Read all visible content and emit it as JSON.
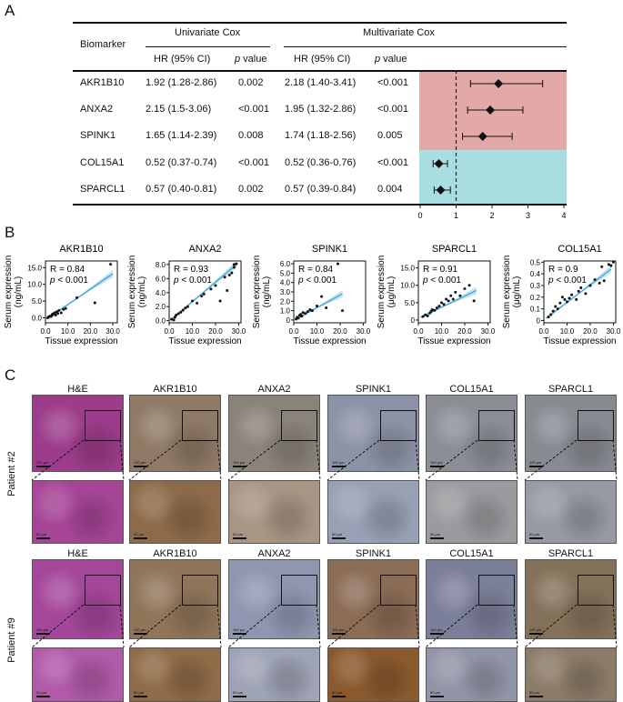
{
  "panels": {
    "a": "A",
    "b": "B",
    "c": "C"
  },
  "table": {
    "col_biomarker": "Biomarker",
    "col_univariate": "Univariate Cox",
    "col_multivariate": "Multivariate Cox",
    "sub_hr": "HR (95% CI)",
    "sub_p_italic": "p",
    "sub_p_rest": " value",
    "rows": [
      {
        "name": "AKR1B10",
        "uni_hr": "1.92 (1.28-2.86)",
        "uni_p": "0.002",
        "multi_hr": "2.18 (1.40-3.41)",
        "multi_p": "<0.001",
        "group": "risk",
        "hr": 2.18,
        "lo": 1.4,
        "hi": 3.41
      },
      {
        "name": "ANXA2",
        "uni_hr": "2.15 (1.5-3.06)",
        "uni_p": "<0.001",
        "multi_hr": "1.95 (1.32-2.86)",
        "multi_p": "<0.001",
        "group": "risk",
        "hr": 1.95,
        "lo": 1.32,
        "hi": 2.86
      },
      {
        "name": "SPINK1",
        "uni_hr": "1.65 (1.14-2.39)",
        "uni_p": "0.008",
        "multi_hr": "1.74 (1.18-2.56)",
        "multi_p": "0.005",
        "group": "risk",
        "hr": 1.74,
        "lo": 1.18,
        "hi": 2.56
      },
      {
        "name": "COL15A1",
        "uni_hr": "0.52 (0.37-0.74)",
        "uni_p": "<0.001",
        "multi_hr": "0.52 (0.36-0.76)",
        "multi_p": "<0.001",
        "group": "protective",
        "hr": 0.52,
        "lo": 0.36,
        "hi": 0.76
      },
      {
        "name": "SPARCL1",
        "uni_hr": "0.57 (0.40-0.81)",
        "uni_p": "0.002",
        "multi_hr": "0.57 (0.39-0.84)",
        "multi_p": "0.004",
        "group": "protective",
        "hr": 0.57,
        "lo": 0.39,
        "hi": 0.84
      }
    ]
  },
  "chart_data": [
    {
      "type": "forest",
      "title": "",
      "xlim": [
        0,
        4
      ],
      "xticks": [
        "0",
        "1",
        "2",
        "3",
        "4"
      ],
      "reference_line": 1,
      "colors": {
        "risk": "#e3a8a8",
        "protective": "#a8dde2",
        "marker": "#111111"
      },
      "categories": [
        "AKR1B10",
        "ANXA2",
        "SPINK1",
        "COL15A1",
        "SPARCL1"
      ],
      "hr": [
        2.18,
        1.95,
        1.74,
        0.52,
        0.57
      ],
      "lower": [
        1.4,
        1.32,
        1.18,
        0.36,
        0.39
      ],
      "upper": [
        3.41,
        2.86,
        2.56,
        0.76,
        0.84
      ]
    },
    {
      "type": "scatter",
      "title": "AKR1B10",
      "xlabel": "Tissue expression",
      "ylabel_top": "Serum expression",
      "ylabel_bottom": "(ng/mL)",
      "xlim": [
        0,
        32
      ],
      "ylim": [
        -1.5,
        17
      ],
      "xticks": [
        0,
        10,
        20,
        30
      ],
      "yticks": [
        0,
        5,
        10,
        15
      ],
      "xtick_labels": [
        "0.0",
        "10.0",
        "20.0",
        "30.0"
      ],
      "ytick_labels": [
        "0.0",
        "5.0",
        "10.0",
        "15.0"
      ],
      "r_text": "R = 0.84",
      "p_text": "< 0.001",
      "fit": [
        [
          1,
          -0.2
        ],
        [
          30,
          13.2
        ]
      ],
      "x": [
        1,
        1.5,
        2,
        2.5,
        3,
        3,
        3.5,
        4,
        4.5,
        5,
        5.5,
        6,
        7,
        8,
        9,
        14,
        22,
        29
      ],
      "y": [
        0,
        0.3,
        0.5,
        0.4,
        1,
        0.8,
        1.2,
        1.5,
        0.8,
        1.8,
        1.3,
        2.2,
        1.5,
        2.5,
        2.8,
        6,
        4.5,
        16
      ]
    },
    {
      "type": "scatter",
      "title": "ANXA2",
      "xlabel": "Tissue expression",
      "ylabel_top": "Serum expression",
      "ylabel_bottom": "(ng/mL)",
      "xlim": [
        0,
        31
      ],
      "ylim": [
        -0.3,
        8.5
      ],
      "xticks": [
        0,
        10,
        20,
        30
      ],
      "yticks": [
        0,
        2,
        4,
        6,
        8
      ],
      "xtick_labels": [
        "0.0",
        "10.0",
        "20.0",
        "30.0"
      ],
      "ytick_labels": [
        "0.0",
        "2.0",
        "4.0",
        "6.0",
        "8.0"
      ],
      "r_text": "R = 0.93",
      "p_text": "< 0.001",
      "fit": [
        [
          1,
          0.2
        ],
        [
          29,
          8.0
        ]
      ],
      "x": [
        1,
        2,
        2.5,
        3,
        4,
        5,
        6,
        7,
        8,
        10,
        12,
        14,
        15,
        18,
        20,
        22,
        24,
        25,
        26,
        27,
        28,
        29,
        28
      ],
      "y": [
        0.2,
        0.1,
        0.5,
        0.8,
        1,
        1.2,
        1.5,
        1.8,
        2,
        2.8,
        2.5,
        3.5,
        3.8,
        4.5,
        5,
        2.8,
        6.2,
        4.3,
        6.5,
        6.8,
        8,
        8.1,
        7.6
      ]
    },
    {
      "type": "scatter",
      "title": "SPINK1",
      "xlabel": "Tissue expression",
      "ylabel_top": "Serum expression",
      "ylabel_bottom": "(ng/mL)",
      "xlim": [
        0,
        31
      ],
      "ylim": [
        -0.3,
        6.3
      ],
      "xticks": [
        0,
        10,
        20,
        30
      ],
      "yticks": [
        0,
        1,
        2,
        3,
        4,
        5,
        6
      ],
      "xtick_labels": [
        "0.0",
        "10.0",
        "20.0",
        "30.0"
      ],
      "ytick_labels": [
        "0",
        "1.0",
        "2.0",
        "3.0",
        "4.0",
        "5.0",
        "6.0"
      ],
      "r_text": "R = 0.84",
      "p_text": "< 0.001",
      "fit": [
        [
          1,
          0.1
        ],
        [
          21,
          2.8
        ]
      ],
      "x": [
        1,
        1.5,
        2,
        2.5,
        3,
        3.5,
        4,
        5,
        6,
        7,
        8,
        10,
        12,
        14,
        19,
        21
      ],
      "y": [
        0.1,
        0.3,
        0.2,
        0.5,
        0.6,
        0.4,
        0.8,
        0.7,
        0.9,
        1.1,
        1,
        1.5,
        2.5,
        1.3,
        6,
        1
      ]
    },
    {
      "type": "scatter",
      "title": "SPARCL1",
      "xlabel": "Tissue expression",
      "ylabel_top": "Serum expression",
      "ylabel_bottom": "(μg/mL)",
      "xlim": [
        0,
        31
      ],
      "ylim": [
        -0.8,
        17
      ],
      "xticks": [
        0,
        10,
        20,
        30
      ],
      "yticks": [
        0,
        5,
        10,
        15
      ],
      "xtick_labels": [
        "0.0",
        "10.0",
        "20.0",
        "30.0"
      ],
      "ytick_labels": [
        "0",
        "5.0",
        "10.0",
        "15.0"
      ],
      "r_text": "R = 0.91",
      "p_text": "< 0.001",
      "fit": [
        [
          1,
          0.8
        ],
        [
          25,
          8.5
        ]
      ],
      "x": [
        2,
        3,
        4,
        5,
        5.5,
        6,
        7,
        8,
        9,
        10,
        11,
        12,
        13,
        14,
        15,
        16,
        18,
        20,
        22,
        24
      ],
      "y": [
        1,
        1.5,
        1.2,
        2,
        2.5,
        3,
        2.8,
        3.5,
        4,
        5,
        4.5,
        6,
        5.5,
        7,
        6,
        8,
        7,
        9,
        10,
        5.5
      ]
    },
    {
      "type": "scatter",
      "title": "COL15A1",
      "xlabel": "Tissue expression",
      "ylabel_top": "Serum expression",
      "ylabel_bottom": "(μg/mL)",
      "xlim": [
        0,
        31
      ],
      "ylim": [
        -0.02,
        0.51
      ],
      "xticks": [
        0,
        10,
        20,
        30
      ],
      "yticks": [
        0,
        0.1,
        0.2,
        0.3,
        0.4,
        0.5
      ],
      "xtick_labels": [
        "0.0",
        "10.0",
        "20.0",
        "30.0"
      ],
      "ytick_labels": [
        "0",
        "0.1",
        "0.2",
        "0.3",
        "0.4",
        "0.5"
      ],
      "r_text": "R = 0.9",
      "p_text": "< 0.001",
      "fit": [
        [
          1,
          0.02
        ],
        [
          29,
          0.44
        ]
      ],
      "x": [
        2,
        3,
        4,
        5,
        6,
        7,
        8,
        9,
        10,
        11,
        12,
        14,
        15,
        16,
        18,
        20,
        22,
        24,
        25,
        26,
        28,
        29,
        30
      ],
      "y": [
        0.03,
        0.05,
        0.08,
        0.12,
        0.1,
        0.15,
        0.2,
        0.18,
        0.16,
        0.19,
        0.22,
        0.18,
        0.25,
        0.28,
        0.23,
        0.3,
        0.35,
        0.32,
        0.46,
        0.34,
        0.48,
        0.47,
        0.5
      ]
    }
  ],
  "figure_c": {
    "patients": [
      {
        "label": "Patient #2",
        "stains": [
          "H&E",
          "AKR1B10",
          "ANXA2",
          "SPINK1",
          "COL15A1",
          "SPARCL1"
        ]
      },
      {
        "label": "Patient #9",
        "stains": [
          "H&E",
          "AKR1B10",
          "ANXA2",
          "SPINK1",
          "COL15A1",
          "SPARCL1"
        ]
      }
    ],
    "scale_low": "100 μm",
    "scale_high": "50 μm",
    "tile_colors": {
      "p2": {
        "he": "#9c3c8a",
        "akr": "#8f7a66",
        "anxa": "#8a8379",
        "spink": "#8d93a6",
        "col": "#8c8e96",
        "sparc": "#888a92"
      },
      "p2z": {
        "he": "#a64596",
        "akr": "#8d6b4a",
        "anxa": "#a89584",
        "spink": "#98a0b5",
        "col": "#9b9b9f",
        "sparc": "#979aa3"
      },
      "p9": {
        "he": "#a4479a",
        "akr": "#907559",
        "anxa": "#8f97b0",
        "spink": "#8b6c55",
        "col": "#7c7f99",
        "sparc": "#84715a"
      },
      "p9z": {
        "he": "#b05aa8",
        "akr": "#8f6b47",
        "anxa": "#9ea3b5",
        "spink": "#8a5a2e",
        "col": "#9295a7",
        "sparc": "#8c7b68"
      }
    }
  }
}
